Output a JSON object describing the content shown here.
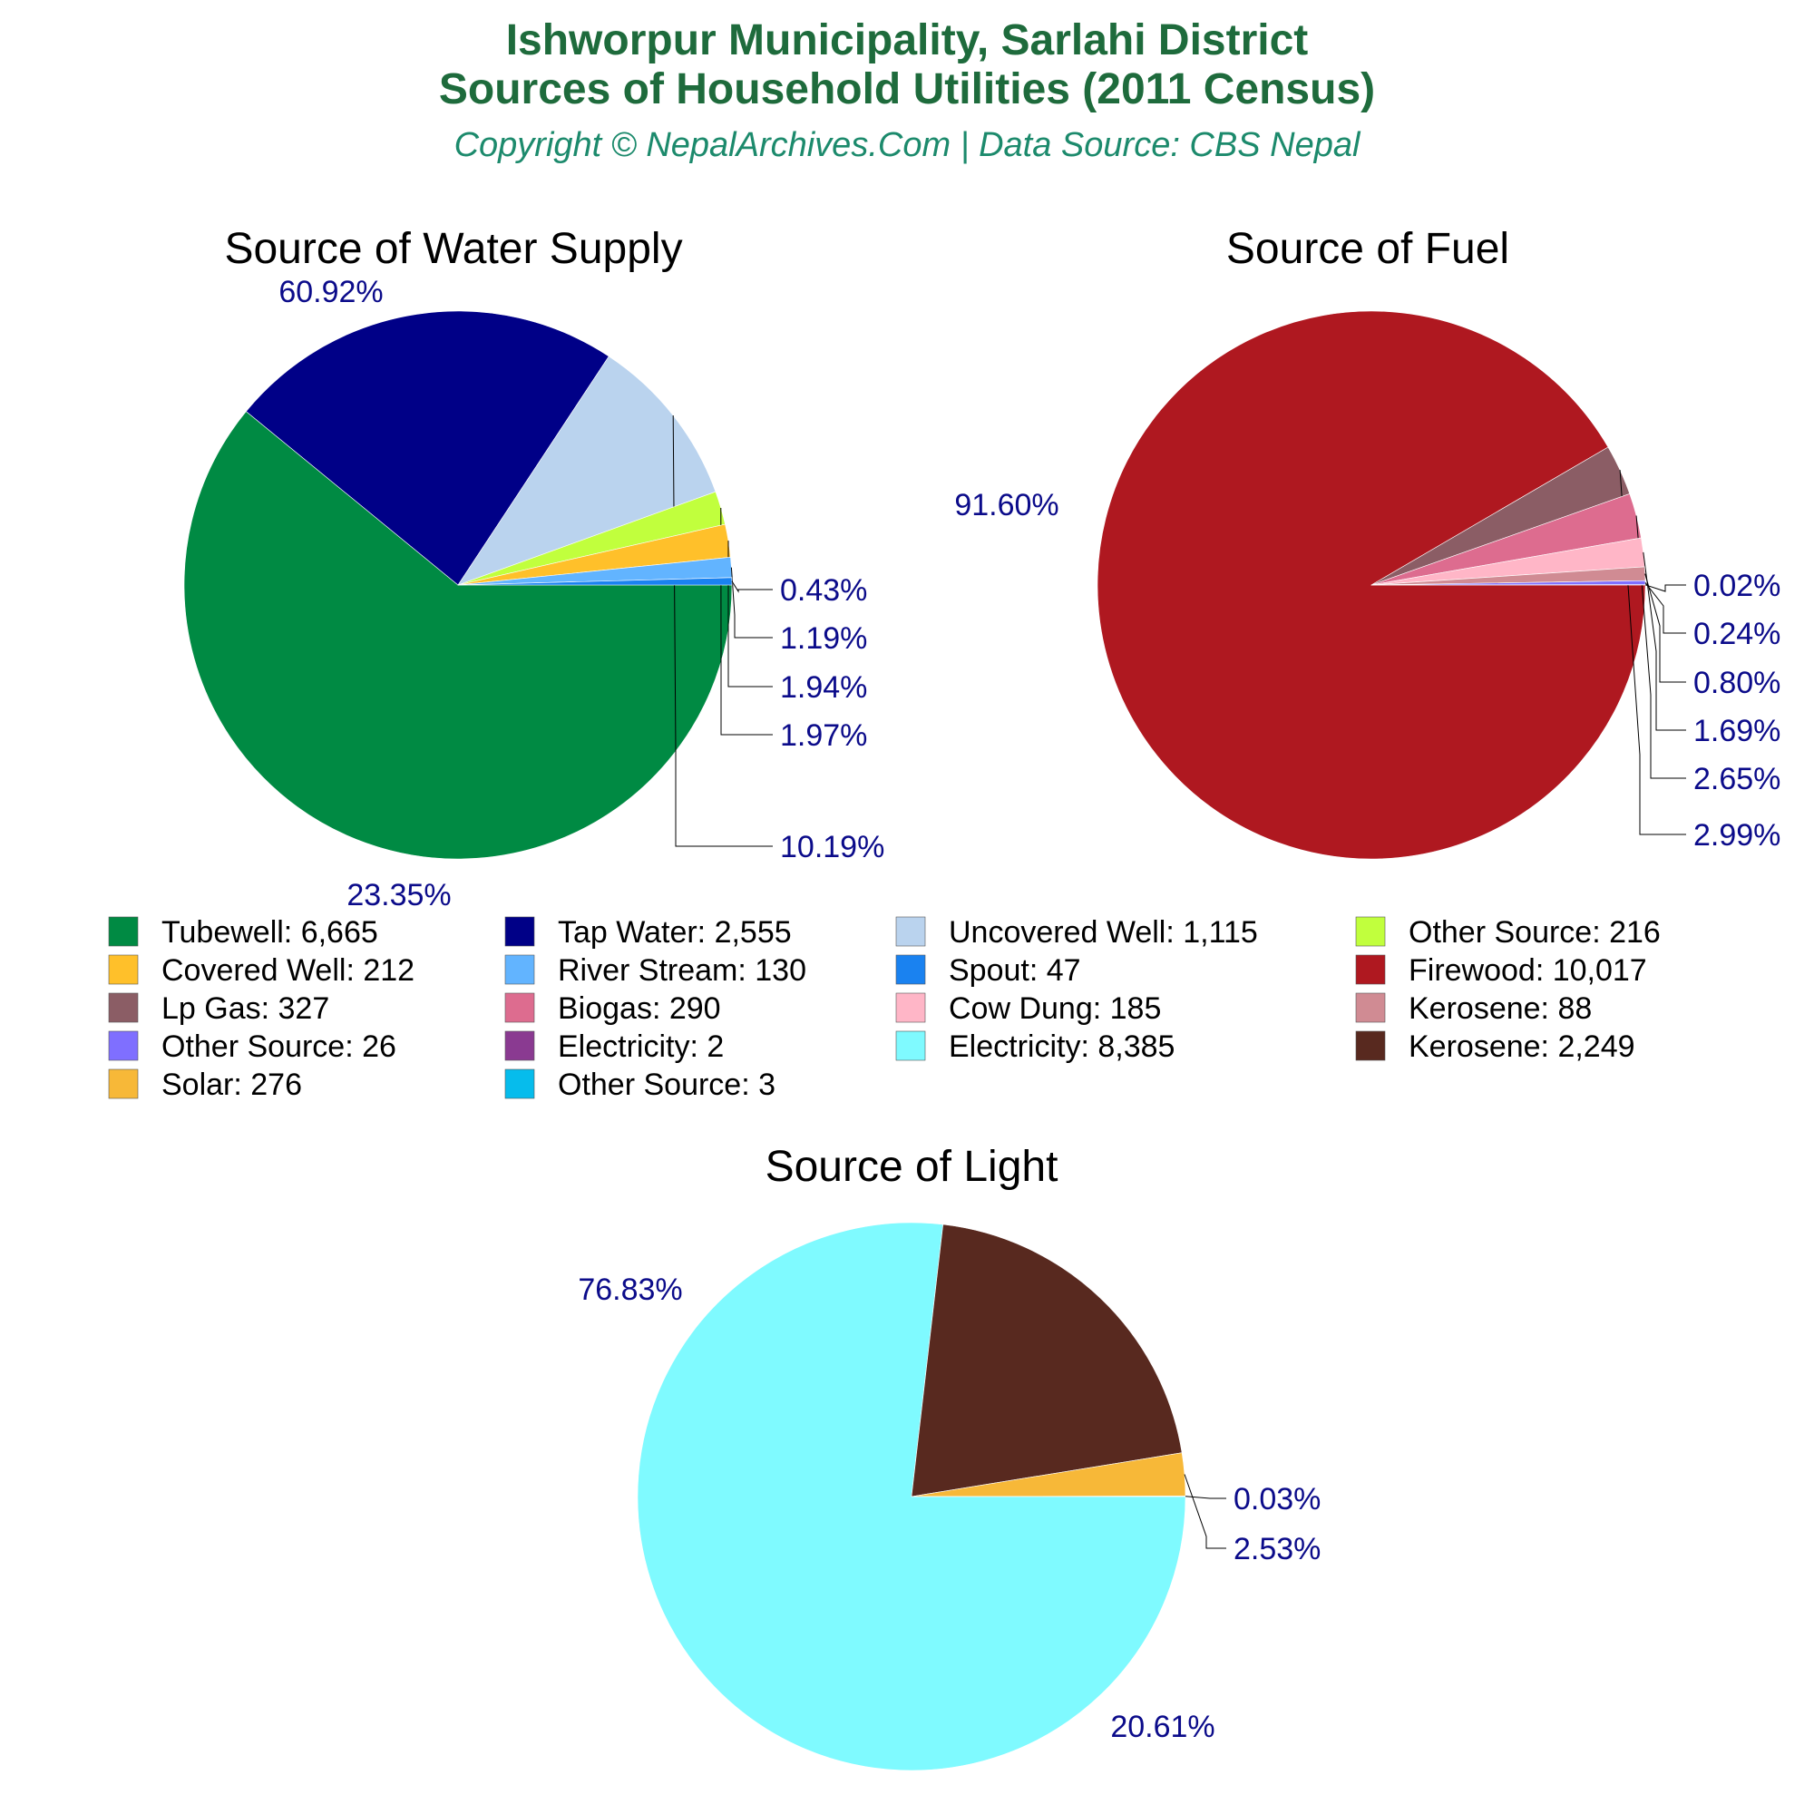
{
  "header": {
    "title_line1": "Ishworpur Municipality, Sarlahi District",
    "title_line2": "Sources of Household Utilities (2011 Census)",
    "subtitle": "Copyright © NepalArchives.Com | Data Source: CBS Nepal"
  },
  "chart_data": [
    {
      "type": "pie",
      "title": "Source of Water Supply",
      "slices": [
        {
          "label": "Tubewell",
          "value": 6665,
          "pct": "60.92%",
          "color": "#008a43"
        },
        {
          "label": "Tap Water",
          "value": 2555,
          "pct": "23.35%",
          "color": "#000087"
        },
        {
          "label": "Uncovered Well",
          "value": 1115,
          "pct": "10.19%",
          "color": "#bad3ee"
        },
        {
          "label": "Other Source",
          "value": 216,
          "pct": "1.97%",
          "color": "#c1ff3d"
        },
        {
          "label": "Covered Well",
          "value": 212,
          "pct": "1.94%",
          "color": "#ffc02a"
        },
        {
          "label": "River Stream",
          "value": 130,
          "pct": "1.19%",
          "color": "#62b4ff"
        },
        {
          "label": "Spout",
          "value": 47,
          "pct": "0.43%",
          "color": "#1a82f0"
        }
      ]
    },
    {
      "type": "pie",
      "title": "Source of Fuel",
      "slices": [
        {
          "label": "Firewood",
          "value": 10017,
          "pct": "91.60%",
          "color": "#af1820"
        },
        {
          "label": "Lp Gas",
          "value": 327,
          "pct": "2.99%",
          "color": "#8b5d65"
        },
        {
          "label": "Biogas",
          "value": 290,
          "pct": "2.65%",
          "color": "#dd6c8f"
        },
        {
          "label": "Cow Dung",
          "value": 185,
          "pct": "1.69%",
          "color": "#ffb6c7"
        },
        {
          "label": "Kerosene",
          "value": 88,
          "pct": "0.80%",
          "color": "#d08b93"
        },
        {
          "label": "Other Source",
          "value": 26,
          "pct": "0.24%",
          "color": "#7f6fff"
        },
        {
          "label": "Electricity",
          "value": 2,
          "pct": "0.02%",
          "color": "#8a3a91"
        }
      ]
    },
    {
      "type": "pie",
      "title": "Source of Light",
      "slices": [
        {
          "label": "Electricity",
          "value": 8385,
          "pct": "76.83%",
          "color": "#7ffaff"
        },
        {
          "label": "Kerosene",
          "value": 2249,
          "pct": "20.61%",
          "color": "#58291f"
        },
        {
          "label": "Solar",
          "value": 276,
          "pct": "2.53%",
          "color": "#f7b838"
        },
        {
          "label": "Other Source",
          "value": 3,
          "pct": "0.03%",
          "color": "#06bcec"
        }
      ]
    }
  ],
  "legend": [
    {
      "text": "Tubewell: 6,665",
      "color": "#008a43"
    },
    {
      "text": "Tap Water: 2,555",
      "color": "#000087"
    },
    {
      "text": "Uncovered Well: 1,115",
      "color": "#bad3ee"
    },
    {
      "text": "Other Source: 216",
      "color": "#c1ff3d"
    },
    {
      "text": "Covered Well: 212",
      "color": "#ffc02a"
    },
    {
      "text": "River Stream: 130",
      "color": "#62b4ff"
    },
    {
      "text": "Spout: 47",
      "color": "#1a82f0"
    },
    {
      "text": "Firewood: 10,017",
      "color": "#af1820"
    },
    {
      "text": "Lp Gas: 327",
      "color": "#8b5d65"
    },
    {
      "text": "Biogas: 290",
      "color": "#dd6c8f"
    },
    {
      "text": "Cow Dung: 185",
      "color": "#ffb6c7"
    },
    {
      "text": "Kerosene: 88",
      "color": "#d08b93"
    },
    {
      "text": "Other Source: 26",
      "color": "#7f6fff"
    },
    {
      "text": "Electricity: 2",
      "color": "#8a3a91"
    },
    {
      "text": "Electricity: 8,385",
      "color": "#7ffaff"
    },
    {
      "text": "Kerosene: 2,249",
      "color": "#58291f"
    },
    {
      "text": "Solar: 276",
      "color": "#f7b838"
    },
    {
      "text": "Other Source: 3",
      "color": "#06bcec"
    }
  ]
}
